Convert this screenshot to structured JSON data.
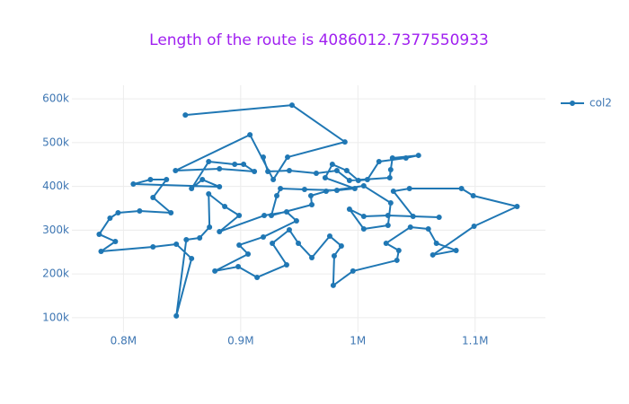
{
  "chart_data": {
    "type": "line",
    "title": "Length of the route is 4086012.7377550933",
    "x": [
      852800,
      943800,
      988900,
      940000,
      927800,
      907900,
      844400,
      881900,
      911700,
      902500,
      894900,
      872700,
      858100,
      867300,
      881900,
      808400,
      823000,
      836700,
      825200,
      840500,
      813800,
      795400,
      788500,
      779300,
      793100,
      780900,
      825200,
      845100,
      858100,
      845100,
      853600,
      865000,
      873400,
      872700,
      886400,
      898700,
      881900,
      920100,
      939200,
      947600,
      919300,
      898700,
      906300,
      878000,
      897900,
      914000,
      939200,
      927000,
      941500,
      949200,
      960700,
      976000,
      985900,
      979800,
      979000,
      995800,
      1033300,
      1034900,
      1024100,
      1044800,
      1060100,
      1067000,
      1083800,
      1063900,
      1099100,
      1135800,
      1098400,
      1088400,
      1044000,
      1030300,
      1047100,
      1069300,
      1025700,
      1005000,
      992800,
      1005000,
      1025700,
      1028000,
      1005000,
      972900,
      959900,
      960700,
      926200,
      930800,
      933900,
      954500,
      982100,
      997400,
      972100,
      978200,
      990500,
      1000400,
      1008100,
      1018000,
      1041000,
      1051700,
      1029500,
      1028000,
      1027200,
      992800,
      982100,
      964500,
      941500,
      923200,
      919300
    ],
    "series": [
      {
        "name": "col2",
        "color": "#1f77b4",
        "values": [
          563100,
          585700,
          501600,
          466800,
          415600,
          518000,
          436100,
          440200,
          434000,
          450400,
          450400,
          456600,
          395100,
          415600,
          399200,
          405300,
          415600,
          415600,
          374600,
          339800,
          343900,
          339800,
          327500,
          290600,
          274200,
          251700,
          261900,
          268100,
          235300,
          104100,
          278300,
          282400,
          307000,
          382800,
          354100,
          333600,
          296700,
          333600,
          341800,
          321300,
          284500,
          266000,
          245500,
          206600,
          216800,
          192200,
          220900,
          270100,
          300800,
          270100,
          237300,
          286500,
          264000,
          241400,
          173800,
          206600,
          231200,
          253700,
          270100,
          307000,
          302900,
          270100,
          253700,
          243500,
          309000,
          354100,
          378700,
          395100,
          395100,
          388900,
          331600,
          329500,
          333600,
          331600,
          348000,
          302900,
          311100,
          362300,
          401200,
          388900,
          378700,
          358200,
          333600,
          378700,
          395100,
          393000,
          391000,
          395100,
          419700,
          450400,
          436100,
          413500,
          415600,
          456600,
          464800,
          470900,
          464800,
          438100,
          419700,
          413500,
          436100,
          429900,
          436100,
          434000,
          466800
        ]
      }
    ],
    "xlim": [
      756000,
      1160000
    ],
    "ylim": [
      67000,
      631000
    ],
    "xticks": [
      {
        "value": 800000,
        "label": "0.8M"
      },
      {
        "value": 900000,
        "label": "0.9M"
      },
      {
        "value": 1000000,
        "label": "1M"
      },
      {
        "value": 1100000,
        "label": "1.1M"
      }
    ],
    "yticks": [
      {
        "value": 100000,
        "label": "100k"
      },
      {
        "value": 200000,
        "label": "200k"
      },
      {
        "value": 300000,
        "label": "300k"
      },
      {
        "value": 400000,
        "label": "400k"
      },
      {
        "value": 500000,
        "label": "500k"
      },
      {
        "value": 600000,
        "label": "600k"
      }
    ],
    "grid": true
  }
}
